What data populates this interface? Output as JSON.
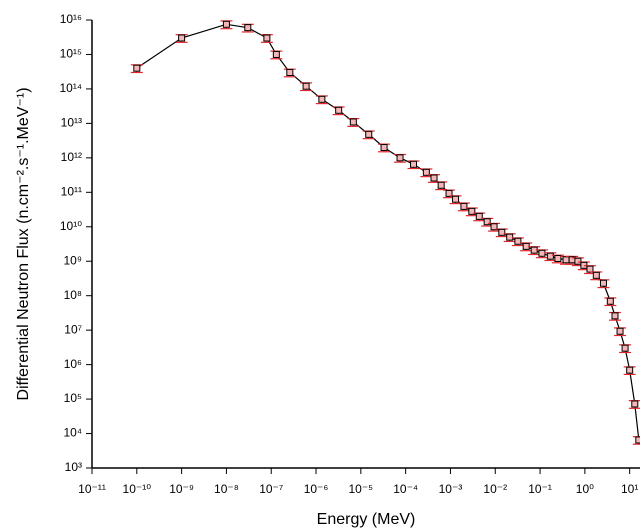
{
  "chart_data": {
    "type": "line",
    "x_label": "Energy (MeV)",
    "y_label": "Differential Neutron Flux (n.cm⁻².s⁻¹.MeV⁻¹)",
    "xscale": "log",
    "yscale": "log",
    "x": [
      1e-10,
      1e-09,
      1e-08,
      3e-08,
      8e-08,
      1.3e-07,
      2.6e-07,
      6e-07,
      1.35e-06,
      3.2e-06,
      6.8e-06,
      1.5e-05,
      3.3e-05,
      7.5e-05,
      0.00015,
      0.00029,
      0.00043,
      0.00062,
      0.00093,
      0.0013,
      0.002,
      0.003,
      0.0044,
      0.0066,
      0.0094,
      0.014,
      0.021,
      0.032,
      0.049,
      0.074,
      0.11,
      0.17,
      0.25,
      0.38,
      0.52,
      0.7,
      0.95,
      1.3,
      1.8,
      2.6,
      3.7,
      4.7,
      6.1,
      7.9,
      10,
      13,
      16
    ],
    "values": [
      400000000000000.0,
      3000000000000000.0,
      7500000000000000.0,
      6000000000000000.0,
      3000000000000000.0,
      1000000000000000.0,
      300000000000000.0,
      120000000000000.0,
      50000000000000.0,
      24000000000000.0,
      11000000000000.0,
      4800000000000.0,
      2000000000000.0,
      1000000000000.0,
      650000000000.0,
      380000000000.0,
      260000000000.0,
      160000000000.0,
      93000000000.0,
      63000000000.0,
      39000000000.0,
      28000000000.0,
      20000000000.0,
      14000000000.0,
      10000000000.0,
      6900000000.0,
      5000000000.0,
      3800000000.0,
      2700000000.0,
      2100000000.0,
      1700000000.0,
      1400000000.0,
      1200000000.0,
      1100000000.0,
      1100000000.0,
      1000000000.0,
      760000000.0,
      590000000.0,
      390000000.0,
      230000000.0,
      69000000.0,
      26000000.0,
      9300000.0,
      3000000.0,
      690000.0,
      72000.0,
      6500.0
    ],
    "errors": [
      100000000000000.0,
      750000000000000.0,
      1900000000000000.0,
      1500000000000000.0,
      750000000000000.0,
      250000000000000.0,
      75000000000000.0,
      30000000000000.0,
      12500000000000.0,
      6000000000000.0,
      2800000000000.0,
      1200000000000.0,
      500000000000.0,
      250000000000.0,
      160000000000.0,
      95000000000.0,
      65000000000.0,
      40000000000.0,
      23000000000.0,
      16000000000.0,
      9800000000.0,
      7000000000.0,
      5000000000.0,
      3500000000.0,
      2500000000.0,
      1700000000.0,
      1250000000.0,
      950000000.0,
      680000000.0,
      530000000.0,
      430000000.0,
      350000000.0,
      300000000.0,
      280000000.0,
      280000000.0,
      250000000.0,
      190000000.0,
      150000000.0,
      98000000.0,
      58000000.0,
      17000000.0,
      6500000.0,
      2300000.0,
      750000.0,
      170000.0,
      18000.0,
      1600.0
    ],
    "color": "#000000",
    "error_color": "#e3262b",
    "xlim": [
      1e-11,
      17
    ],
    "xticks": [
      {
        "value": 1e-11,
        "label": "10⁻¹¹"
      },
      {
        "value": 1e-10,
        "label": "10⁻¹⁰"
      },
      {
        "value": 1e-09,
        "label": "10⁻⁹"
      },
      {
        "value": 1e-08,
        "label": "10⁻⁸"
      },
      {
        "value": 1e-07,
        "label": "10⁻⁷"
      },
      {
        "value": 1e-06,
        "label": "10⁻⁶"
      },
      {
        "value": 1e-05,
        "label": "10⁻⁵"
      },
      {
        "value": 0.0001,
        "label": "10⁻⁴"
      },
      {
        "value": 0.001,
        "label": "10⁻³"
      },
      {
        "value": 0.01,
        "label": "10⁻²"
      },
      {
        "value": 0.1,
        "label": "10⁻¹"
      },
      {
        "value": 1,
        "label": "10⁰"
      },
      {
        "value": 10,
        "label": "10¹"
      }
    ],
    "ylim": [
      1000.0,
      1e+16
    ],
    "yticks": [
      {
        "value": 1000.0,
        "label": "10³"
      },
      {
        "value": 10000.0,
        "label": "10⁴"
      },
      {
        "value": 100000.0,
        "label": "10⁵"
      },
      {
        "value": 1000000.0,
        "label": "10⁶"
      },
      {
        "value": 10000000.0,
        "label": "10⁷"
      },
      {
        "value": 100000000.0,
        "label": "10⁸"
      },
      {
        "value": 1000000000.0,
        "label": "10⁹"
      },
      {
        "value": 10000000000.0,
        "label": "10¹⁰"
      },
      {
        "value": 100000000000.0,
        "label": "10¹¹"
      },
      {
        "value": 1000000000000.0,
        "label": "10¹²"
      },
      {
        "value": 10000000000000.0,
        "label": "10¹³"
      },
      {
        "value": 100000000000000.0,
        "label": "10¹⁴"
      },
      {
        "value": 1000000000000000.0,
        "label": "10¹⁵"
      },
      {
        "value": 1e+16,
        "label": "10¹⁶"
      }
    ],
    "grid": false
  }
}
